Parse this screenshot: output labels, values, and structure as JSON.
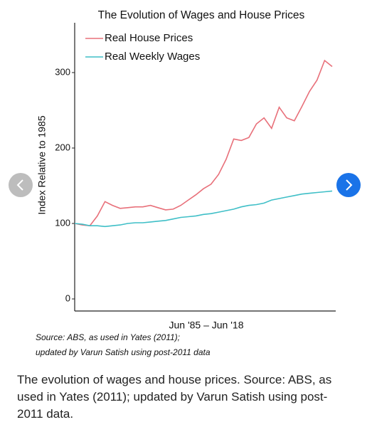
{
  "chart_data": {
    "type": "line",
    "title": "The Evolution of Wages and House Prices",
    "xlabel": "Jun '85 – Jun '18",
    "ylabel": "Index Relative to 1985",
    "notes": [
      "Source: ABS, as used in Yates (2011);",
      "updated by Varun Satish using post-2011 data"
    ],
    "categories": [
      null,
      null,
      null,
      null,
      null,
      null,
      null,
      null,
      null,
      null,
      null,
      null,
      null,
      null,
      null,
      null,
      null,
      null,
      null,
      null,
      null,
      null,
      null,
      null,
      null,
      null,
      null,
      null,
      null,
      null,
      null,
      null,
      null,
      null,
      null
    ],
    "series": [
      {
        "name": "Real House Prices",
        "color": "#e8707a",
        "values": [
          100,
          98,
          97,
          110,
          129,
          124,
          120,
          121,
          122,
          122,
          124,
          121,
          118,
          119,
          124,
          131,
          138,
          146,
          152,
          165,
          185,
          212,
          210,
          214,
          232,
          240,
          226,
          254,
          240,
          236,
          255,
          275,
          290,
          316,
          308
        ]
      },
      {
        "name": "Real Weekly Wages",
        "color": "#3fbfc7",
        "values": [
          100,
          99,
          97,
          97,
          96,
          97,
          98,
          100,
          101,
          101,
          102,
          103,
          104,
          106,
          108,
          109,
          110,
          112,
          113,
          115,
          117,
          119,
          122,
          124,
          125,
          127,
          131,
          133,
          135,
          137,
          139,
          140,
          141,
          142,
          143
        ]
      }
    ],
    "ylim": [
      -16,
      366
    ],
    "yticks": [
      0,
      100,
      200,
      300
    ],
    "grid": false,
    "legend": "top-left"
  },
  "caption": "The evolution of wages and house prices. Source: ABS, as used in Yates (2011); updated by Varun Satish using post-2011 data."
}
